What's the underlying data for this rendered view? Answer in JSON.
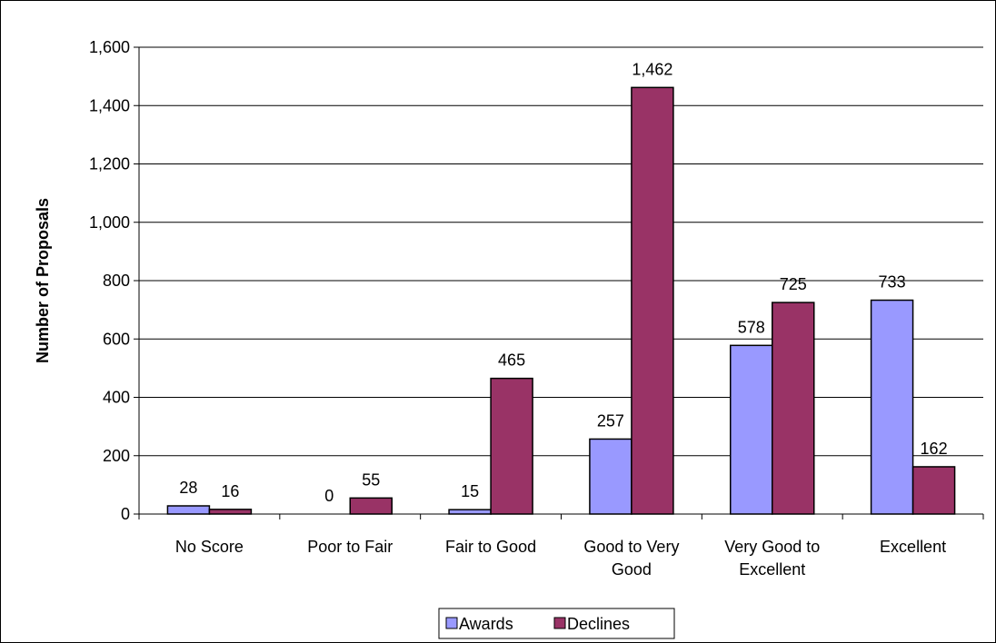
{
  "chart_data": {
    "type": "bar",
    "title": "",
    "xlabel": "",
    "ylabel": "Number of Proposals",
    "ylim": [
      0,
      1600
    ],
    "yticks": [
      0,
      200,
      400,
      600,
      800,
      1000,
      1200,
      1400,
      1600
    ],
    "ytick_labels": [
      "0",
      "200",
      "400",
      "600",
      "800",
      "1,000",
      "1,200",
      "1,400",
      "1,600"
    ],
    "grid": true,
    "legend_position": "bottom",
    "categories": [
      [
        "No Score"
      ],
      [
        "Poor to Fair"
      ],
      [
        "Fair to Good"
      ],
      [
        "Good to Very",
        "Good"
      ],
      [
        "Very Good to",
        "Excellent"
      ],
      [
        "Excellent"
      ]
    ],
    "series": [
      {
        "name": "Awards",
        "color": "#9999ff",
        "values": [
          28,
          0,
          15,
          257,
          578,
          733
        ],
        "labels": [
          "28",
          "0",
          "15",
          "257",
          "578",
          "733"
        ]
      },
      {
        "name": "Declines",
        "color": "#993366",
        "values": [
          16,
          55,
          465,
          1462,
          725,
          162
        ],
        "labels": [
          "16",
          "55",
          "465",
          "1,462",
          "725",
          "162"
        ]
      }
    ]
  }
}
